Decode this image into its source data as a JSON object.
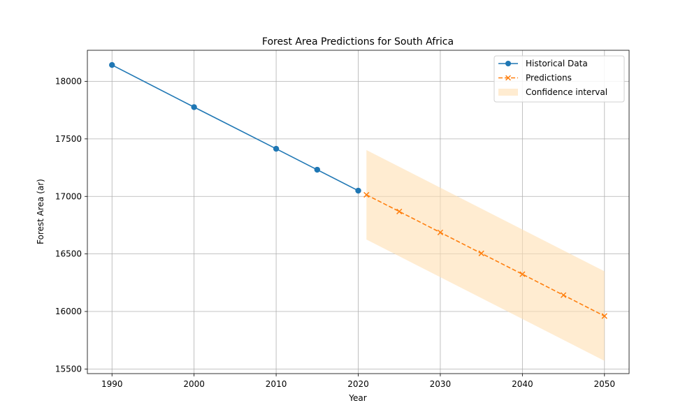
{
  "chart_data": {
    "type": "line",
    "title": "Forest Area Predictions for South Africa",
    "xlabel": "Year",
    "ylabel": "Forest Area (ar)",
    "xlim": [
      1987,
      2053
    ],
    "ylim": [
      15460,
      18270
    ],
    "xticks": [
      1990,
      2000,
      2010,
      2020,
      2030,
      2040,
      2050
    ],
    "yticks": [
      15500,
      16000,
      16500,
      17000,
      17500,
      18000
    ],
    "grid": true,
    "legend": {
      "placement": "top-right"
    },
    "series": [
      {
        "name": "Historical Data",
        "color": "#1f77b4",
        "style": "solid",
        "marker": "circle",
        "x": [
          1990,
          2000,
          2010,
          2015,
          2020
        ],
        "y": [
          18142,
          17776,
          17414,
          17232,
          17050
        ]
      },
      {
        "name": "Predictions",
        "color": "#ff7f0e",
        "style": "dashed",
        "marker": "x",
        "x": [
          2021,
          2025,
          2030,
          2035,
          2040,
          2045,
          2050
        ],
        "y": [
          17014,
          16869,
          16687,
          16505,
          16324,
          16142,
          15960
        ]
      }
    ],
    "confidence_interval": {
      "name": "Confidence interval",
      "color": "#ffe0b2",
      "x": [
        2021,
        2050
      ],
      "lower": [
        16625,
        15571
      ],
      "upper": [
        17403,
        16349
      ]
    }
  }
}
